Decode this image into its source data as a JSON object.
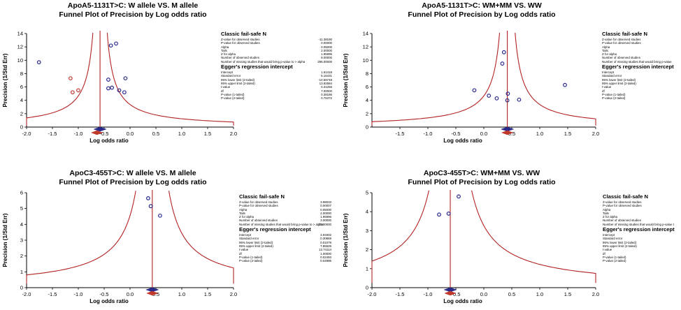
{
  "panels": [
    {
      "title1": "ApoA5-1131T>C: W allele VS. M allele",
      "title2": "Funnel Plot of Precision by Log odds ratio",
      "stats": {
        "failsafe_heading": "Classic fail-safe N",
        "failsafe_rows": [
          {
            "label": "Z-value for observed studies",
            "value": "-11.38190"
          },
          {
            "label": "P-value for observed studies",
            "value": "0.00000"
          },
          {
            "label": "Alpha",
            "value": "0.05000"
          },
          {
            "label": "Tails",
            "value": "2.00000"
          },
          {
            "label": "Z for alpha",
            "value": "1.95996"
          },
          {
            "label": "Number of observed studies",
            "value": "9.00000"
          },
          {
            "label": "Number of missing studies that would bring p-value to > alpha",
            "value": "295.00000"
          }
        ],
        "egger_heading": "Egger's regression intercept",
        "egger_rows": [
          {
            "label": "Intercept",
            "value": "1.61418"
          },
          {
            "label": "Standard error",
            "value": "5.16431"
          },
          {
            "label": "95% lower limit (2-tailed)",
            "value": "-10.59748"
          },
          {
            "label": "95% upper limit (2-tailed)",
            "value": "13.82584"
          },
          {
            "label": "t-value",
            "value": "0.31256"
          },
          {
            "label": "df",
            "value": "7.00000"
          },
          {
            "label": "P-value (1-tailed)",
            "value": "0.38186"
          },
          {
            "label": "P-value (2-tailed)",
            "value": "0.76372"
          }
        ]
      }
    },
    {
      "title1": "ApoA5-1131T>C: WM+MM VS. WW",
      "title2": "Funnel Plot of Precision by Log odds ratio",
      "stats": {
        "failsafe_heading": "Classic fail-safe N",
        "failsafe_rows": [
          {
            "label": "Z-value for observed studies",
            "value": ""
          },
          {
            "label": "P-value for observed studies",
            "value": ""
          },
          {
            "label": "Alpha",
            "value": ""
          },
          {
            "label": "Tails",
            "value": ""
          },
          {
            "label": "Z for alpha",
            "value": ""
          },
          {
            "label": "Number of observed studies",
            "value": ""
          },
          {
            "label": "Number of missing studies that would bring p-value",
            "value": ""
          }
        ],
        "egger_heading": "Egger's regression intercept",
        "egger_rows": [
          {
            "label": "Intercept",
            "value": ""
          },
          {
            "label": "Standard error",
            "value": ""
          },
          {
            "label": "95% lower limit (2-tailed)",
            "value": ""
          },
          {
            "label": "95% upper limit (2-tailed)",
            "value": ""
          },
          {
            "label": "t-value",
            "value": ""
          },
          {
            "label": "df",
            "value": ""
          },
          {
            "label": "P-value (1-tailed)",
            "value": ""
          },
          {
            "label": "P-value (2-tailed)",
            "value": ""
          }
        ]
      }
    },
    {
      "title1": "ApoC3-455T>C: W allele VS. M allele",
      "title2": "Funnel Plot of Precision by Log odds ratio",
      "stats": {
        "failsafe_heading": "Classic fail-safe N",
        "failsafe_rows": [
          {
            "label": "Z-value for observed studies",
            "value": "3.98033"
          },
          {
            "label": "P-value for observed studies",
            "value": "0.00007"
          },
          {
            "label": "Alpha",
            "value": "0.05000"
          },
          {
            "label": "Tails",
            "value": "2.00000"
          },
          {
            "label": "Z for alpha",
            "value": "1.95996"
          },
          {
            "label": "Number of observed studies",
            "value": "3.00000"
          },
          {
            "label": "Number of missing studies that would bring p-value to > alpha",
            "value": "10.00000"
          }
        ],
        "egger_heading": "Egger's regression intercept",
        "egger_rows": [
          {
            "label": "Intercept",
            "value": "3.93302"
          },
          {
            "label": "Standard error",
            "value": "0.30869"
          },
          {
            "label": "95% lower limit (2-tailed)",
            "value": "0.01079"
          },
          {
            "label": "95% upper limit (2-tailed)",
            "value": "7.85525"
          },
          {
            "label": "t-value",
            "value": "12.74114"
          },
          {
            "label": "df",
            "value": "1.00000"
          },
          {
            "label": "P-value (1-tailed)",
            "value": "0.02493"
          },
          {
            "label": "P-value (2-tailed)",
            "value": "0.04986"
          }
        ]
      }
    },
    {
      "title1": "ApoC3-455T>C: WM+MM VS. WW",
      "title2": "Funnel Plot of Precision by Log odds ratio",
      "stats": {
        "failsafe_heading": "Classic fail-safe N",
        "failsafe_rows": [
          {
            "label": "Z-value for observed studies",
            "value": ""
          },
          {
            "label": "P-value for observed studies",
            "value": ""
          },
          {
            "label": "Alpha",
            "value": ""
          },
          {
            "label": "Tails",
            "value": ""
          },
          {
            "label": "Z for alpha",
            "value": ""
          },
          {
            "label": "Number of observed studies",
            "value": ""
          },
          {
            "label": "Number of missing studies that would bring p-value t",
            "value": ""
          }
        ],
        "egger_heading": "Egger's regression intercept",
        "egger_rows": [
          {
            "label": "Intercept",
            "value": ""
          },
          {
            "label": "Standard error",
            "value": ""
          },
          {
            "label": "95% lower limit (2-tailed)",
            "value": ""
          },
          {
            "label": "95% upper limit (2-tailed)",
            "value": ""
          },
          {
            "label": "t-value",
            "value": ""
          },
          {
            "label": "df",
            "value": ""
          },
          {
            "label": "P-value (1-tailed)",
            "value": ""
          },
          {
            "label": "P-value (2-tailed)",
            "value": ""
          }
        ]
      }
    }
  ],
  "colors": {
    "observed_point": "#2a2a8c",
    "imputed_point": "#c0392b",
    "funnel_line": "#b22222",
    "axis": "#000000"
  },
  "chart_data": [
    {
      "type": "scatter",
      "title": "ApoA5-1131T>C: W allele VS. M allele",
      "subtitle": "Funnel Plot of Precision by Log odds ratio",
      "xlabel": "Log odds ratio",
      "ylabel": "Precision (1/Std Err)",
      "xlim": [
        -2.0,
        2.0
      ],
      "ylim": [
        0,
        14
      ],
      "x_ticks": [
        "-2.0",
        "-1.5",
        "-1.0",
        "-0.5",
        "0.0",
        "0.5",
        "1.0",
        "1.5",
        "2.0"
      ],
      "y_ticks": [
        "0",
        "2",
        "4",
        "6",
        "8",
        "10",
        "12",
        "14"
      ],
      "center": -0.58,
      "adjusted_center": -0.64,
      "series": [
        {
          "points": [
            [
              -1.76,
              9.7
            ],
            [
              -0.42,
              7.1
            ],
            [
              -0.42,
              5.8
            ],
            [
              -0.35,
              5.9
            ],
            [
              -0.37,
              12.2
            ],
            [
              -0.27,
              12.5
            ],
            [
              -0.21,
              5.5
            ],
            [
              -0.11,
              5.2
            ],
            [
              -0.09,
              7.3
            ]
          ]
        },
        {
          "points": [
            [
              -1.15,
              7.3
            ],
            [
              -1.11,
              5.2
            ],
            [
              -1.0,
              5.5
            ]
          ]
        }
      ]
    },
    {
      "type": "scatter",
      "title": "ApoA5-1131T>C: WM+MM VS. WW",
      "subtitle": "Funnel Plot of Precision by Log odds ratio",
      "xlabel": "Log odds ratio",
      "ylabel": "Precision (1/Std Err)",
      "xlim": [
        -2.0,
        2.0
      ],
      "ylim": [
        0,
        14
      ],
      "x_ticks": [
        "-1.5",
        "-1.0",
        "-0.5",
        "0.0",
        "0.5",
        "1.0",
        "1.5",
        "2.0"
      ],
      "y_ticks": [
        "0",
        "2",
        "4",
        "6",
        "8",
        "10",
        "12",
        "14"
      ],
      "center": 0.42,
      "adjusted_center": 0.42,
      "series": [
        {
          "points": [
            [
              -0.17,
              5.5
            ],
            [
              0.09,
              4.7
            ],
            [
              0.23,
              4.3
            ],
            [
              0.33,
              9.5
            ],
            [
              0.36,
              11.2
            ],
            [
              0.42,
              4.0
            ],
            [
              0.43,
              5.0
            ],
            [
              0.63,
              4.1
            ],
            [
              1.45,
              6.3
            ]
          ]
        }
      ]
    },
    {
      "type": "scatter",
      "title": "ApoC3-455T>C: W allele VS. M allele",
      "subtitle": "Funnel Plot of Precision by Log odds ratio",
      "xlabel": "Log odds ratio",
      "ylabel": "Precision (1/Std Err)",
      "xlim": [
        -2.0,
        2.0
      ],
      "ylim": [
        0,
        6
      ],
      "x_ticks": [
        "-2.0",
        "-1.5",
        "-1.0",
        "-0.5",
        "0.0",
        "0.5",
        "1.0",
        "1.5",
        "2.0"
      ],
      "y_ticks": [
        "0",
        "1",
        "2",
        "3",
        "4",
        "5",
        "6"
      ],
      "center": 0.43,
      "adjusted_center": 0.43,
      "series": [
        {
          "points": [
            [
              0.35,
              5.65
            ],
            [
              0.4,
              5.15
            ],
            [
              0.58,
              4.55
            ]
          ]
        }
      ]
    },
    {
      "type": "scatter",
      "title": "ApoC3-455T>C: WM+MM VS. WW",
      "subtitle": "Funnel Plot of Precision by Log odds ratio",
      "xlabel": "Log odds ratio",
      "ylabel": "Precision (1/Std Err)",
      "xlim": [
        -2.0,
        2.0
      ],
      "ylim": [
        0,
        5
      ],
      "x_ticks": [
        "-2.0",
        "-1.5",
        "-1.0",
        "-0.5",
        "0.0",
        "0.5",
        "1.0",
        "1.5",
        "2.0"
      ],
      "y_ticks": [
        "0",
        "1",
        "2",
        "3",
        "4",
        "5"
      ],
      "center": -0.6,
      "adjusted_center": -0.6,
      "series": [
        {
          "points": [
            [
              -0.8,
              3.85
            ],
            [
              -0.63,
              3.9
            ],
            [
              -0.45,
              4.8
            ]
          ]
        }
      ]
    }
  ]
}
